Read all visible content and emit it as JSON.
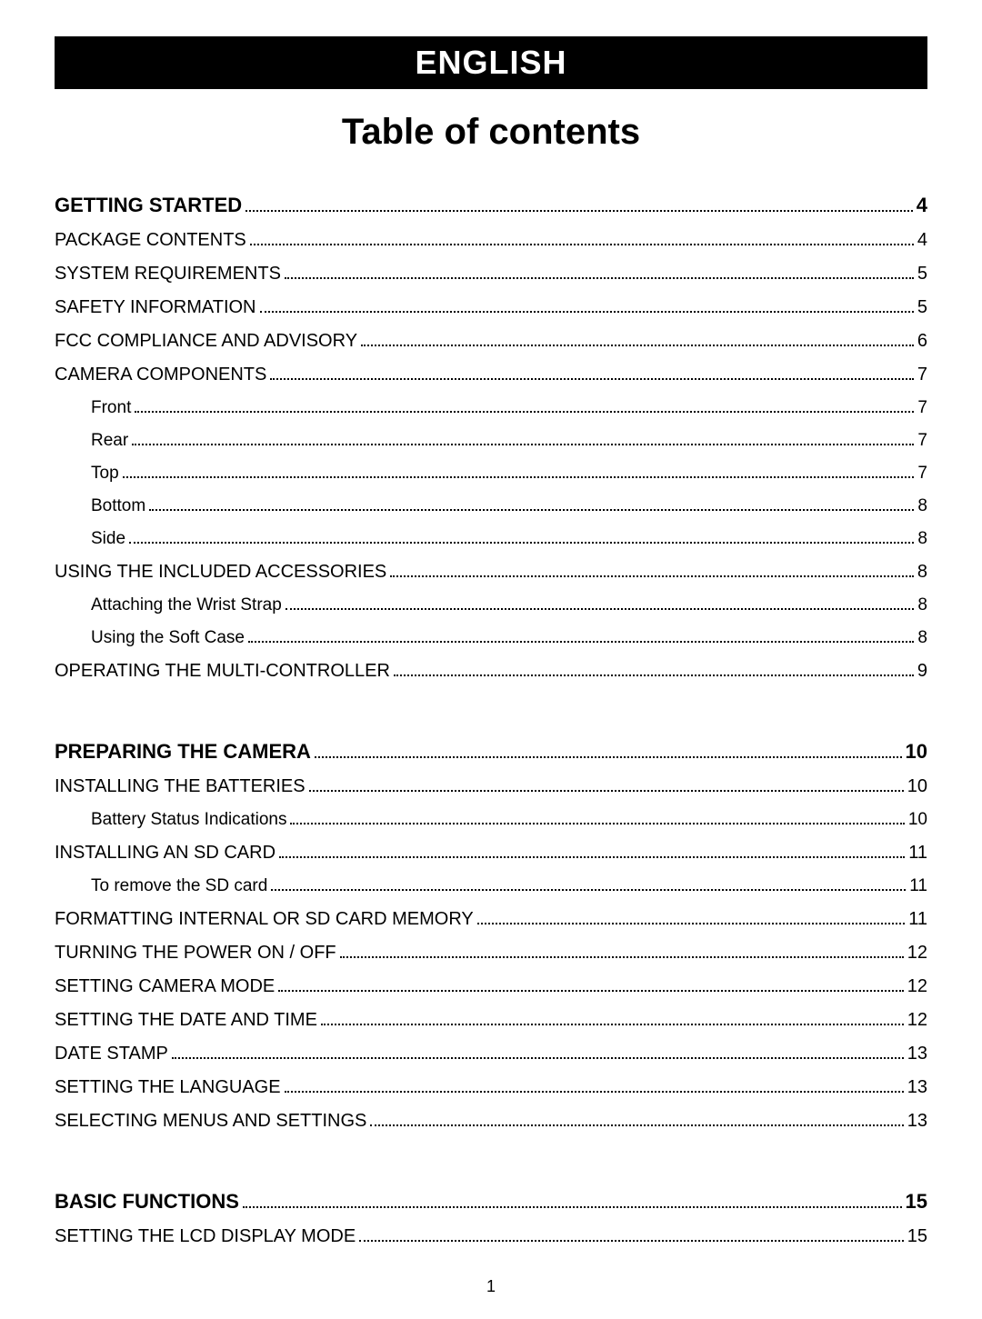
{
  "header": {
    "language": "ENGLISH",
    "title": "Table of contents"
  },
  "toc": {
    "sections": [
      {
        "title": "GETTING STARTED",
        "page": "4",
        "entries": [
          {
            "label": "PACKAGE CONTENTS",
            "page": "4",
            "level": 1
          },
          {
            "label": "SYSTEM REQUIREMENTS",
            "page": "5",
            "level": 1
          },
          {
            "label": "SAFETY INFORMATION",
            "page": "5",
            "level": 1
          },
          {
            "label": "FCC COMPLIANCE AND ADVISORY",
            "page": "6",
            "level": 1
          },
          {
            "label": "CAMERA COMPONENTS",
            "page": "7",
            "level": 1
          },
          {
            "label": "Front",
            "page": "7",
            "level": 2
          },
          {
            "label": "Rear",
            "page": "7",
            "level": 2
          },
          {
            "label": "Top",
            "page": "7",
            "level": 2
          },
          {
            "label": "Bottom",
            "page": "8",
            "level": 2
          },
          {
            "label": "Side",
            "page": "8",
            "level": 2
          },
          {
            "label": "USING THE INCLUDED ACCESSORIES",
            "page": "8",
            "level": 1
          },
          {
            "label": "Attaching the Wrist Strap",
            "page": "8",
            "level": 2
          },
          {
            "label": "Using the Soft Case",
            "page": "8",
            "level": 2
          },
          {
            "label": "OPERATING THE MULTI-CONTROLLER",
            "page": "9",
            "level": 1
          }
        ]
      },
      {
        "title": "PREPARING THE CAMERA",
        "page": "10",
        "entries": [
          {
            "label": "INSTALLING THE BATTERIES",
            "page": "10",
            "level": 1
          },
          {
            "label": "Battery Status Indications",
            "page": "10",
            "level": 2
          },
          {
            "label": "INSTALLING AN SD CARD",
            "page": "11",
            "level": 1
          },
          {
            "label": "To remove the SD card",
            "page": "11",
            "level": 2
          },
          {
            "label": "FORMATTING INTERNAL OR SD CARD MEMORY",
            "page": "11",
            "level": 1
          },
          {
            "label": "TURNING THE POWER ON / OFF",
            "page": "12",
            "level": 1
          },
          {
            "label": "SETTING CAMERA MODE",
            "page": "12",
            "level": 1
          },
          {
            "label": "SETTING THE DATE AND TIME",
            "page": "12",
            "level": 1
          },
          {
            "label": "DATE STAMP",
            "page": "13",
            "level": 1
          },
          {
            "label": "SETTING THE LANGUAGE",
            "page": "13",
            "level": 1
          },
          {
            "label": "SELECTING MENUS AND SETTINGS",
            "page": "13",
            "level": 1
          }
        ]
      },
      {
        "title": "BASIC FUNCTIONS",
        "page": "15",
        "entries": [
          {
            "label": "SETTING THE LCD DISPLAY MODE",
            "page": "15",
            "level": 1
          }
        ]
      }
    ]
  },
  "pageNumber": "1",
  "colors": {
    "headerBg": "#000000",
    "headerText": "#ffffff",
    "bodyText": "#000000",
    "pageBg": "#ffffff"
  }
}
